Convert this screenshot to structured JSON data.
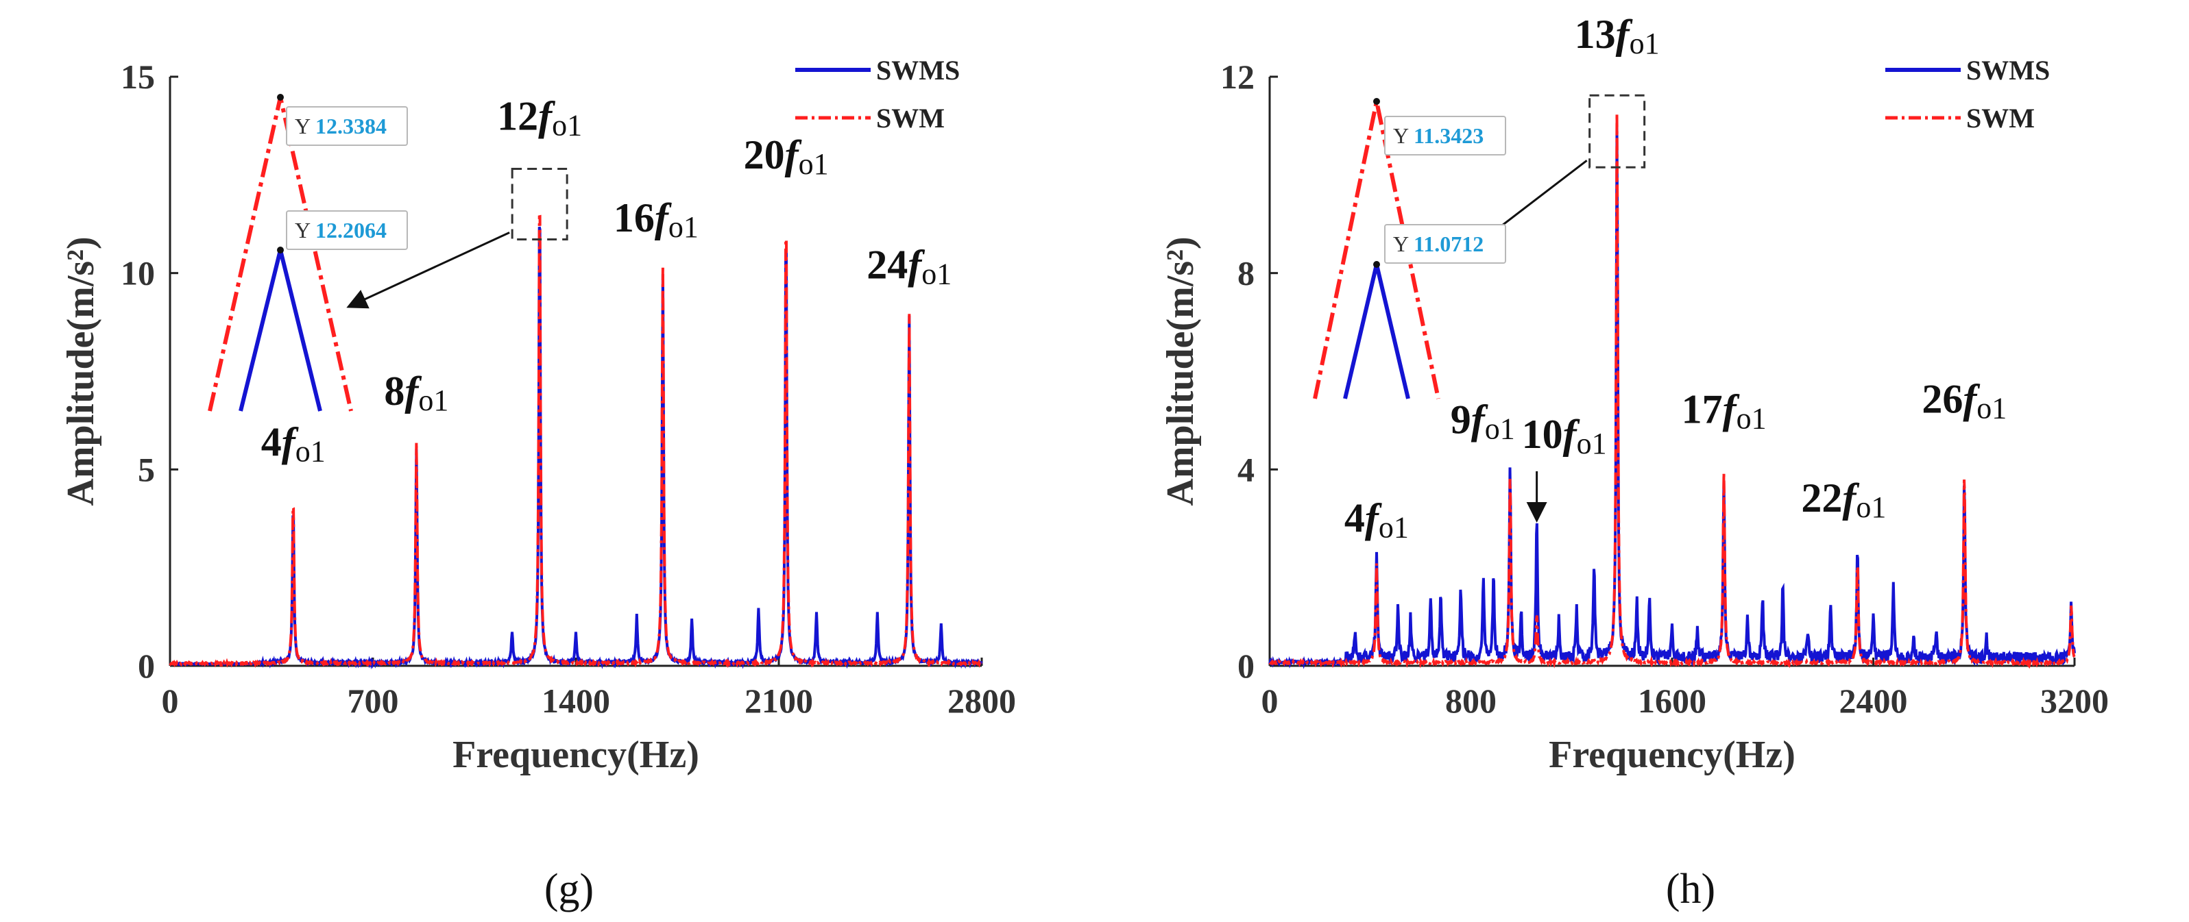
{
  "chart_data": [
    {
      "panel_label": "(g)",
      "type": "line",
      "xlabel": "Frequency(Hz)",
      "ylabel": "Amplitude(m/s²)",
      "xlim": [
        0,
        2800
      ],
      "ylim": [
        0,
        15
      ],
      "xticks": [
        0,
        700,
        1400,
        2100,
        2800
      ],
      "yticks": [
        0,
        5,
        10,
        15
      ],
      "legend": {
        "placement": "top-right",
        "entries": [
          "SWMS",
          "SWM"
        ]
      },
      "colors": {
        "SWMS": "#1414d2",
        "SWM": "#ff1f1f"
      },
      "series": [
        {
          "name": "SWMS",
          "peaks": [
            [
              425,
              4.1
            ],
            [
              850,
              5.4
            ],
            [
              1180,
              0.8
            ],
            [
              1275,
              12.21
            ],
            [
              1400,
              0.8
            ],
            [
              1610,
              1.2
            ],
            [
              1700,
              9.9
            ],
            [
              1800,
              1.1
            ],
            [
              2030,
              1.4
            ],
            [
              2125,
              11.6
            ],
            [
              2230,
              1.3
            ],
            [
              2440,
              1.3
            ],
            [
              2550,
              8.8
            ],
            [
              2660,
              1.0
            ]
          ]
        },
        {
          "name": "SWM",
          "peaks": [
            [
              425,
              4.3
            ],
            [
              850,
              5.6
            ],
            [
              1275,
              12.34
            ],
            [
              1700,
              10.1
            ],
            [
              2125,
              11.7
            ],
            [
              2550,
              8.9
            ]
          ]
        }
      ],
      "annotations": [
        {
          "parts": [
            "4",
            "f",
            "o1"
          ],
          "x": 425,
          "y": 4.3
        },
        {
          "parts": [
            "8",
            "f",
            "o1"
          ],
          "x": 850,
          "y": 5.6
        },
        {
          "parts": [
            "12",
            "f",
            "o1"
          ],
          "x": 1275,
          "y": 12.34
        },
        {
          "parts": [
            "16",
            "f",
            "o1"
          ],
          "x": 1700,
          "y": 10.1
        },
        {
          "parts": [
            "20",
            "f",
            "o1"
          ],
          "x": 2125,
          "y": 11.7
        },
        {
          "parts": [
            "24",
            "f",
            "o1"
          ],
          "x": 2550,
          "y": 8.9
        }
      ],
      "zoom_inset": {
        "datatips": [
          {
            "series": "SWM",
            "label": "Y",
            "value": "12.3384"
          },
          {
            "series": "SWMS",
            "label": "Y",
            "value": "12.2064"
          }
        ]
      }
    },
    {
      "panel_label": "(h)",
      "type": "line",
      "xlabel": "Frequency(Hz)",
      "ylabel": "Amplitude(m/s²)",
      "xlim": [
        0,
        3200
      ],
      "ylim": [
        0,
        12
      ],
      "xticks": [
        0,
        800,
        1600,
        2400,
        3200
      ],
      "yticks": [
        0,
        4,
        8,
        12
      ],
      "legend": {
        "placement": "top-right",
        "entries": [
          "SWMS",
          "SWM"
        ]
      },
      "colors": {
        "SWMS": "#1414d2",
        "SWM": "#ff1f1f"
      },
      "series": [
        {
          "name": "SWMS",
          "peaks": [
            [
              340,
              0.6
            ],
            [
              425,
              2.2
            ],
            [
              510,
              1.0
            ],
            [
              560,
              0.8
            ],
            [
              640,
              1.2
            ],
            [
              680,
              1.3
            ],
            [
              760,
              1.4
            ],
            [
              850,
              1.7
            ],
            [
              890,
              1.7
            ],
            [
              956,
              3.9
            ],
            [
              1000,
              1.0
            ],
            [
              1062,
              2.9
            ],
            [
              1150,
              0.8
            ],
            [
              1220,
              1.0
            ],
            [
              1290,
              2.0
            ],
            [
              1381,
              11.07
            ],
            [
              1460,
              1.2
            ],
            [
              1510,
              1.3
            ],
            [
              1600,
              0.6
            ],
            [
              1700,
              0.6
            ],
            [
              1806,
              3.6
            ],
            [
              1900,
              0.8
            ],
            [
              1960,
              1.3
            ],
            [
              2040,
              1.5
            ],
            [
              2140,
              0.6
            ],
            [
              2230,
              1.2
            ],
            [
              2337,
              2.3
            ],
            [
              2400,
              0.8
            ],
            [
              2480,
              1.5
            ],
            [
              2560,
              0.4
            ],
            [
              2650,
              0.6
            ],
            [
              2762,
              3.6
            ],
            [
              2850,
              0.4
            ],
            [
              3187,
              1.1
            ]
          ]
        },
        {
          "name": "SWM",
          "peaks": [
            [
              425,
              2.0
            ],
            [
              956,
              3.8
            ],
            [
              1062,
              1.0
            ],
            [
              1381,
              11.34
            ],
            [
              1806,
              3.9
            ],
            [
              2337,
              2.1
            ],
            [
              2762,
              3.9
            ],
            [
              3187,
              1.2
            ]
          ]
        }
      ],
      "annotations": [
        {
          "parts": [
            "4",
            "f",
            "o1"
          ],
          "x": 425,
          "y": 2.2
        },
        {
          "parts": [
            "9",
            "f",
            "o1"
          ],
          "x": 956,
          "y": 3.9
        },
        {
          "parts": [
            "10",
            "f",
            "o1"
          ],
          "x": 1062,
          "y": 2.9
        },
        {
          "parts": [
            "13",
            "f",
            "o1"
          ],
          "x": 1381,
          "y": 11.34
        },
        {
          "parts": [
            "17",
            "f",
            "o1"
          ],
          "x": 1806,
          "y": 3.9
        },
        {
          "parts": [
            "22",
            "f",
            "o1"
          ],
          "x": 2337,
          "y": 2.3
        },
        {
          "parts": [
            "26",
            "f",
            "o1"
          ],
          "x": 2762,
          "y": 3.9
        }
      ],
      "zoom_inset": {
        "datatips": [
          {
            "series": "SWM",
            "label": "Y",
            "value": "11.3423"
          },
          {
            "series": "SWMS",
            "label": "Y",
            "value": "11.0712"
          }
        ]
      }
    }
  ]
}
